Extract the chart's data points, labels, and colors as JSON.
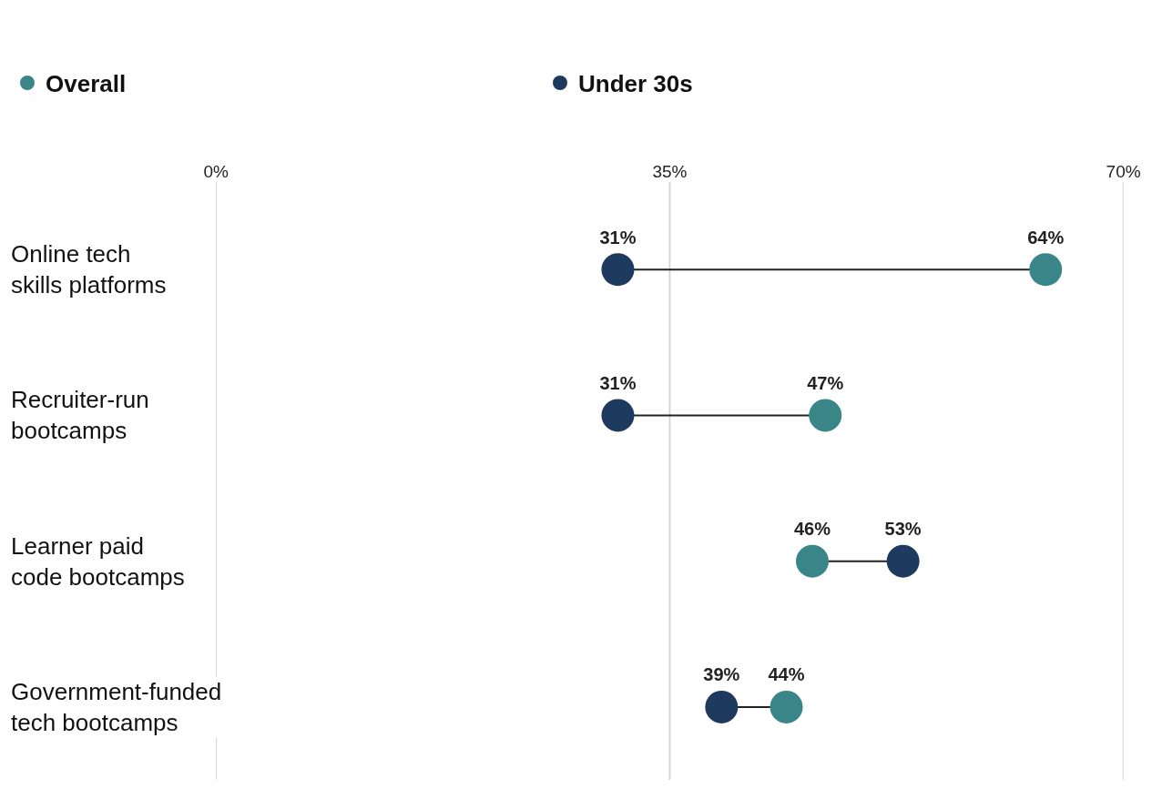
{
  "chart_data": {
    "type": "scatter",
    "orientation": "horizontal",
    "categories": [
      "Online tech skills platforms",
      "Recruiter-run bootcamps",
      "Learner paid code bootcamps",
      "Government-funded tech bootcamps"
    ],
    "series": [
      {
        "name": "Overall",
        "color": "#3a8588",
        "values": [
          64,
          47,
          46,
          44
        ],
        "value_labels": [
          "64%",
          "47%",
          "46%",
          "44%"
        ]
      },
      {
        "name": "Under 30s",
        "color": "#1f3a5f",
        "values": [
          31,
          31,
          53,
          39
        ],
        "value_labels": [
          "31%",
          "31%",
          "53%",
          "39%"
        ]
      }
    ],
    "xlim": [
      0,
      70
    ],
    "xticks": [
      {
        "value": 0,
        "label": "0%"
      },
      {
        "value": 35,
        "label": "35%"
      },
      {
        "value": 70,
        "label": "70%"
      }
    ],
    "grid": "x",
    "legend": "top left",
    "marker": "circle"
  }
}
